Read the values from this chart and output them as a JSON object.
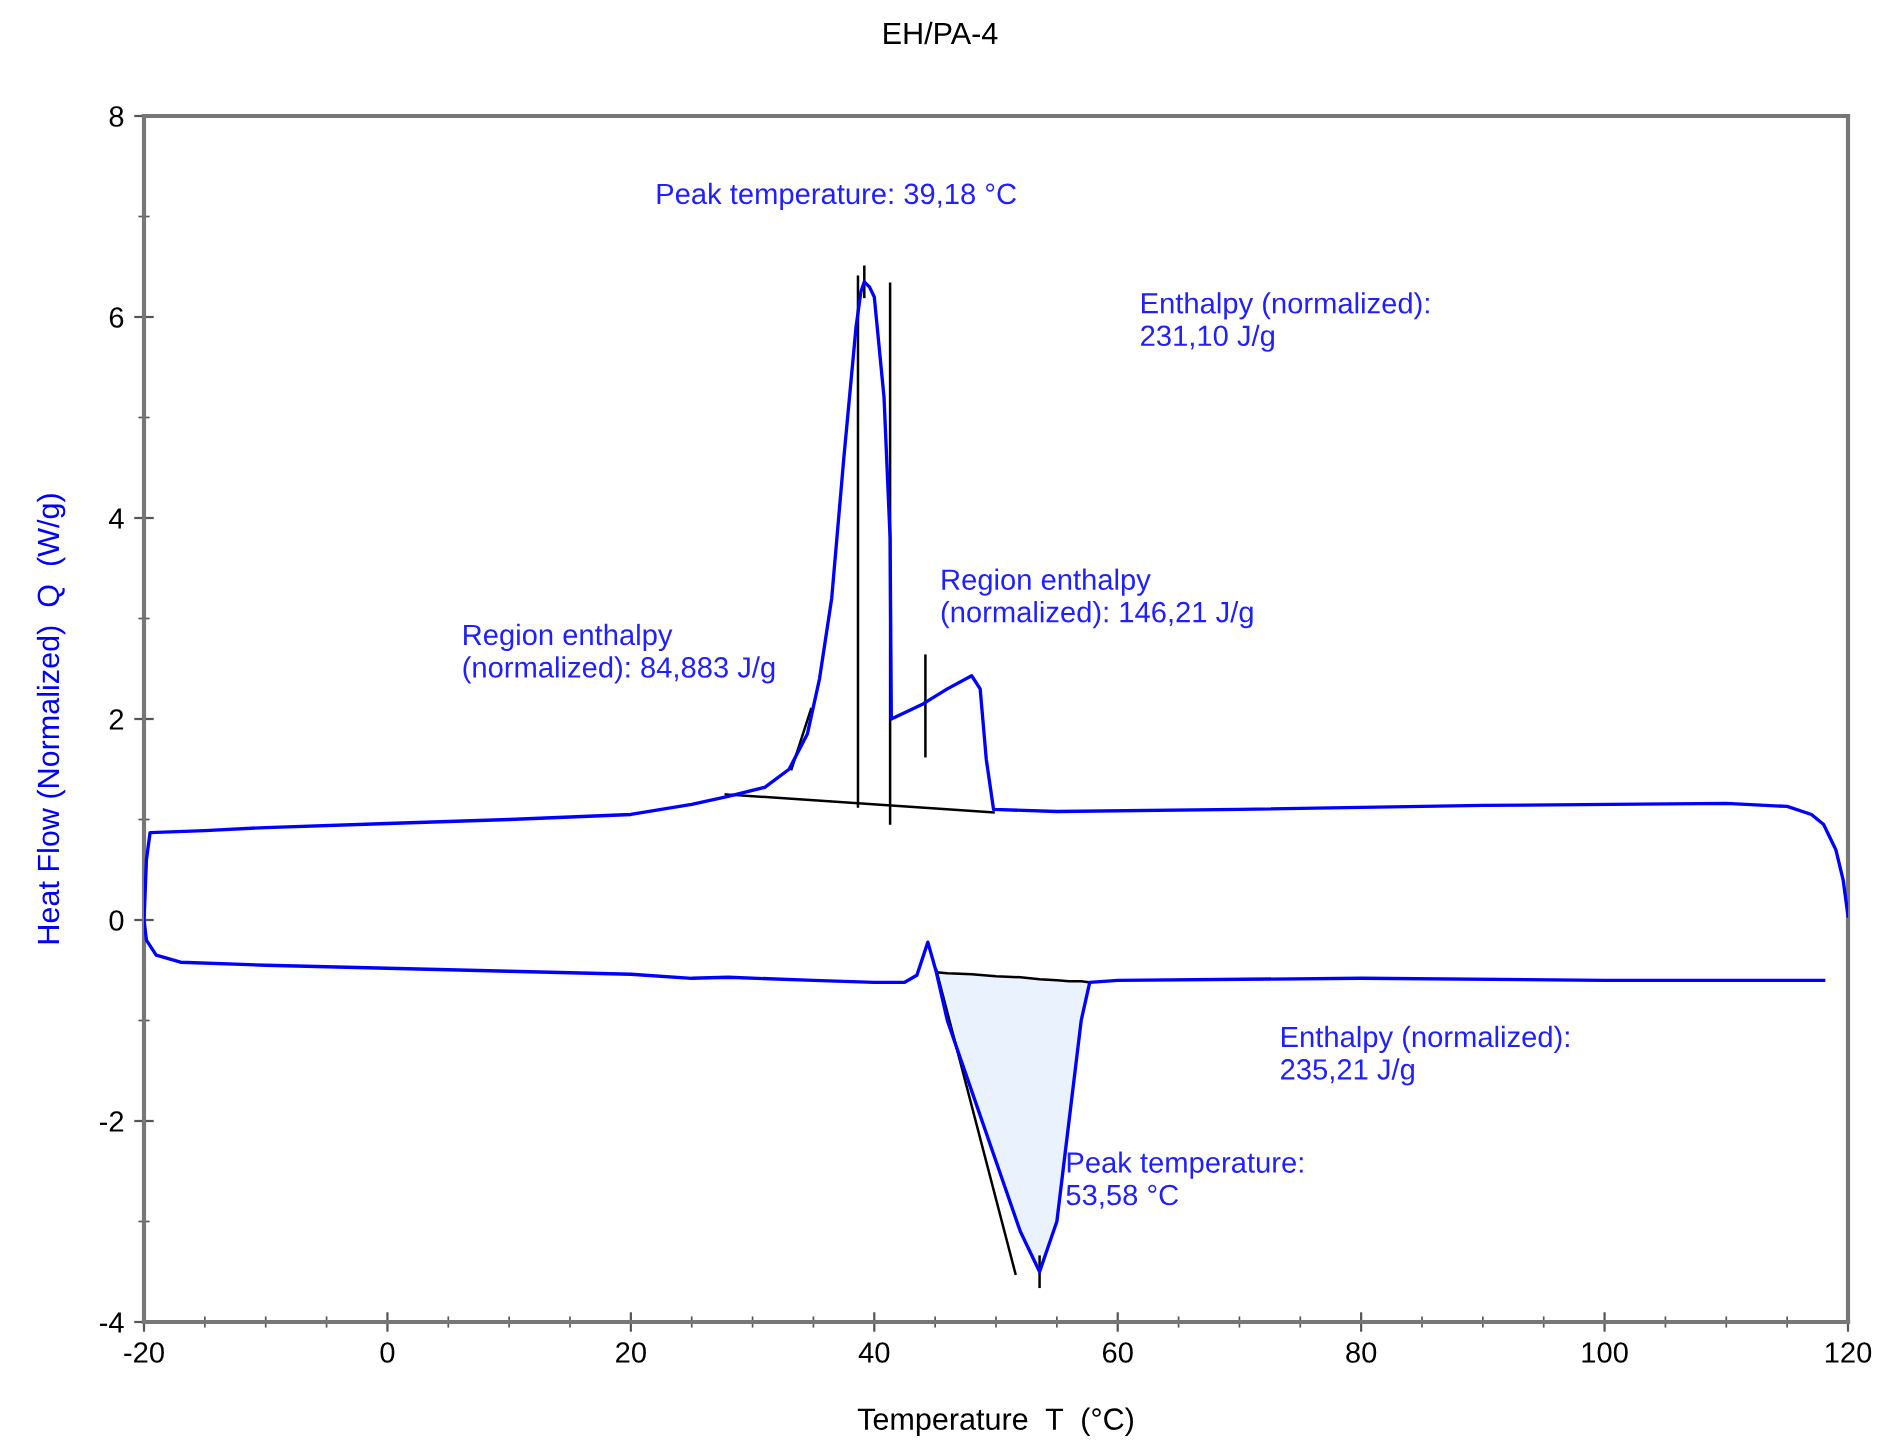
{
  "chart_data": {
    "type": "line",
    "title": "EH/PA-4",
    "xlabel": "Temperature  T  (°C)",
    "ylabel": "Heat Flow (Normalized)  Q  (W/g)",
    "xlim": [
      -20,
      120
    ],
    "ylim": [
      -4,
      8
    ],
    "xticks": [
      -20,
      0,
      20,
      40,
      60,
      80,
      100,
      120
    ],
    "yticks": [
      -4,
      -2,
      0,
      2,
      4,
      6,
      8
    ],
    "grid": false,
    "marker": "none",
    "line_style": "solid",
    "series": [
      {
        "color": "#0000ff",
        "x": [
          118,
          100,
          80,
          60,
          57.7,
          57,
          56,
          55,
          53.58,
          52,
          50,
          48,
          46,
          45.1,
          44.4,
          43.5,
          42.5,
          40,
          35,
          28,
          25,
          20,
          10,
          0,
          -10,
          -17,
          -19,
          -19.8,
          -20,
          -19.8,
          -19.5,
          -15,
          -10,
          0,
          10,
          20,
          25,
          28,
          31,
          33,
          34.5,
          35.5,
          36.5,
          37.5,
          38.5,
          38.9,
          39.18,
          39.6,
          40,
          40.8,
          41.3,
          41.4,
          44,
          46,
          48,
          48.7,
          49.2,
          49.8,
          55,
          70,
          90,
          110,
          115,
          117,
          118,
          119,
          119.6,
          120
        ],
        "values": [
          -0.6,
          -0.6,
          -0.58,
          -0.6,
          -0.62,
          -1.0,
          -2.0,
          -3.0,
          -3.5,
          -3.1,
          -2.4,
          -1.7,
          -1.0,
          -0.52,
          -0.22,
          -0.55,
          -0.62,
          -0.62,
          -0.6,
          -0.57,
          -0.58,
          -0.54,
          -0.51,
          -0.48,
          -0.45,
          -0.42,
          -0.35,
          -0.2,
          0,
          0.6,
          0.87,
          0.89,
          0.92,
          0.96,
          1.0,
          1.05,
          1.15,
          1.23,
          1.32,
          1.5,
          1.85,
          2.4,
          3.2,
          4.6,
          5.9,
          6.25,
          6.35,
          6.3,
          6.2,
          5.2,
          3.8,
          2.0,
          2.15,
          2.3,
          2.43,
          2.3,
          1.6,
          1.1,
          1.08,
          1.1,
          1.14,
          1.16,
          1.13,
          1.05,
          0.95,
          0.7,
          0.4,
          0.04
        ]
      },
      {
        "color": "#000000",
        "x": [
          27.8,
          49.8
        ],
        "values": [
          1.25,
          1.07
        ]
      },
      {
        "color": "#000000",
        "x": [
          38.66,
          38.66
        ],
        "values": [
          1.13,
          6.4
        ]
      },
      {
        "color": "#000000",
        "x": [
          39.18,
          39.18
        ],
        "values": [
          6.2,
          6.5
        ]
      },
      {
        "color": "#000000",
        "x": [
          41.3,
          41.3
        ],
        "values": [
          0.96,
          6.33
        ]
      },
      {
        "color": "#000000",
        "x": [
          44.2,
          44.2
        ],
        "values": [
          1.63,
          2.63
        ]
      },
      {
        "color": "#000000",
        "x": [
          33.2,
          34.8
        ],
        "values": [
          1.5,
          2.1
        ]
      },
      {
        "color": "#000000",
        "x": [
          45.1,
          51.6
        ],
        "values": [
          -0.5,
          -3.52
        ]
      },
      {
        "color": "#000000",
        "x": [
          53.58,
          53.58
        ],
        "values": [
          -3.35,
          -3.65
        ]
      },
      {
        "color": "#000000",
        "x": [
          45.1,
          46,
          48,
          50,
          52,
          53.58,
          55,
          56,
          57,
          57.7
        ],
        "values": [
          -0.52,
          -0.53,
          -0.54,
          -0.56,
          -0.57,
          -0.59,
          -0.6,
          -0.61,
          -0.61,
          -0.62
        ],
        "upper": [
          -0.52,
          -0.53,
          -0.54,
          -0.56,
          -0.57,
          -0.59,
          -0.6,
          -0.61,
          -0.61,
          -0.62
        ],
        "lower": [
          -0.52,
          -1.0,
          -1.7,
          -2.4,
          -3.1,
          -3.5,
          -3.0,
          -2.0,
          -1.0,
          -0.62
        ]
      }
    ],
    "annotations": [
      "Peak temperature: 39,18 °C",
      "Enthalpy (normalized):\n231,10 J/g",
      "Region enthalpy\n(normalized): 84,883 J/g",
      "Region enthalpy\n(normalized): 146,21 J/g",
      "Enthalpy (normalized):\n235,21 J/g",
      "Peak temperature:\n53,58 °C"
    ]
  }
}
